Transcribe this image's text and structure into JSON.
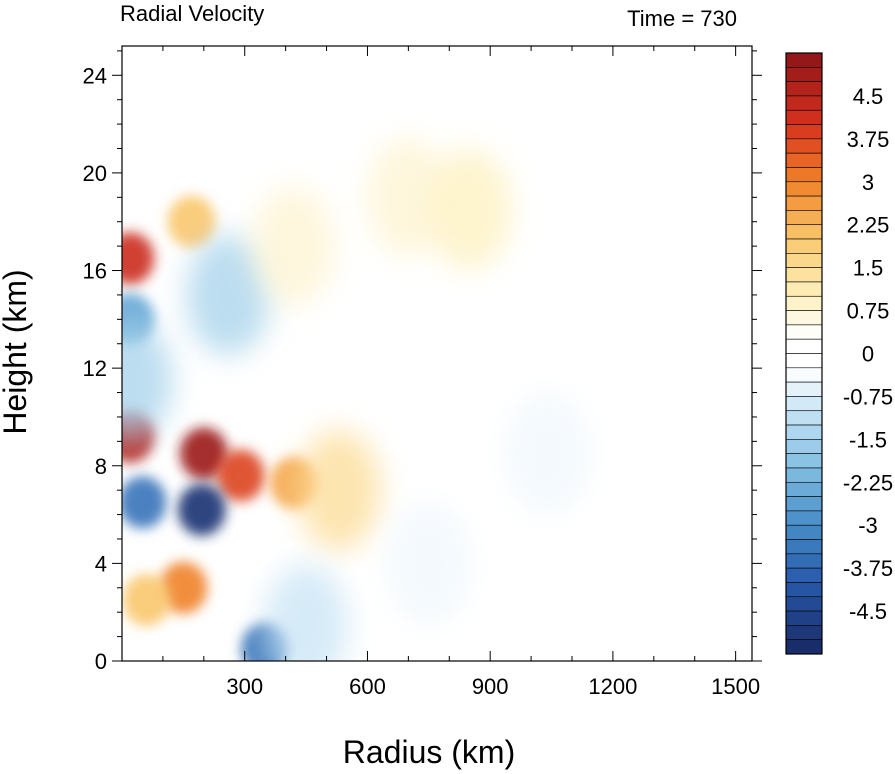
{
  "chart_data": {
    "type": "heatmap",
    "title": "Radial Velocity",
    "subtitle": "Time = 730",
    "xlabel": "Radius (km)",
    "ylabel": "Height (km)",
    "xlim": [
      0,
      1540
    ],
    "ylim": [
      0,
      25.2
    ],
    "x_ticks": [
      300,
      600,
      900,
      1200,
      1500
    ],
    "x_tick_labels": [
      "300",
      "600",
      "900",
      "1200",
      "1500"
    ],
    "y_ticks": [
      0,
      4,
      8,
      12,
      16,
      20,
      24
    ],
    "y_tick_labels": [
      "0",
      "4",
      "8",
      "12",
      "16",
      "20",
      "24"
    ],
    "colorbar": {
      "min": -5.25,
      "max": 5.25,
      "interval": 0.25,
      "labels": [
        "4.5",
        "3.75",
        "3",
        "2.25",
        "1.5",
        "0.75",
        "0",
        "-0.75",
        "-1.5",
        "-2.25",
        "-3",
        "-3.75",
        "-4.5"
      ],
      "label_values": [
        4.5,
        3.75,
        3,
        2.25,
        1.5,
        0.75,
        0,
        -0.75,
        -1.5,
        -2.25,
        -3,
        -3.75,
        -4.5
      ],
      "colormap": "blue-white-red diverging"
    },
    "features": [
      {
        "x": 200,
        "y": 8.5,
        "value": 5.0
      },
      {
        "x": 290,
        "y": 7.6,
        "value": 3.8
      },
      {
        "x": 420,
        "y": 7.3,
        "value": 2.5
      },
      {
        "x": 530,
        "y": 7.0,
        "value": 1.5
      },
      {
        "x": 195,
        "y": 6.2,
        "value": -5.0
      },
      {
        "x": 50,
        "y": 6.5,
        "value": -3.5
      },
      {
        "x": 20,
        "y": 9.2,
        "value": 4.6
      },
      {
        "x": 20,
        "y": 16.5,
        "value": 4.2
      },
      {
        "x": 20,
        "y": 14,
        "value": -2.5
      },
      {
        "x": 20,
        "y": 11.5,
        "value": -1.5
      },
      {
        "x": 150,
        "y": 3.0,
        "value": 3.0
      },
      {
        "x": 60,
        "y": 2.5,
        "value": 2.0
      },
      {
        "x": 350,
        "y": 0.5,
        "value": -3.5
      },
      {
        "x": 450,
        "y": 1.5,
        "value": -1.0
      },
      {
        "x": 170,
        "y": 18.0,
        "value": 2.0
      },
      {
        "x": 260,
        "y": 15.0,
        "value": -1.5
      },
      {
        "x": 420,
        "y": 17.0,
        "value": 0.8
      },
      {
        "x": 700,
        "y": 19.0,
        "value": 0.8
      },
      {
        "x": 850,
        "y": 18.5,
        "value": 1.0
      },
      {
        "x": 1040,
        "y": 8.5,
        "value": -0.5
      },
      {
        "x": 750,
        "y": 4.0,
        "value": -0.5
      }
    ]
  }
}
